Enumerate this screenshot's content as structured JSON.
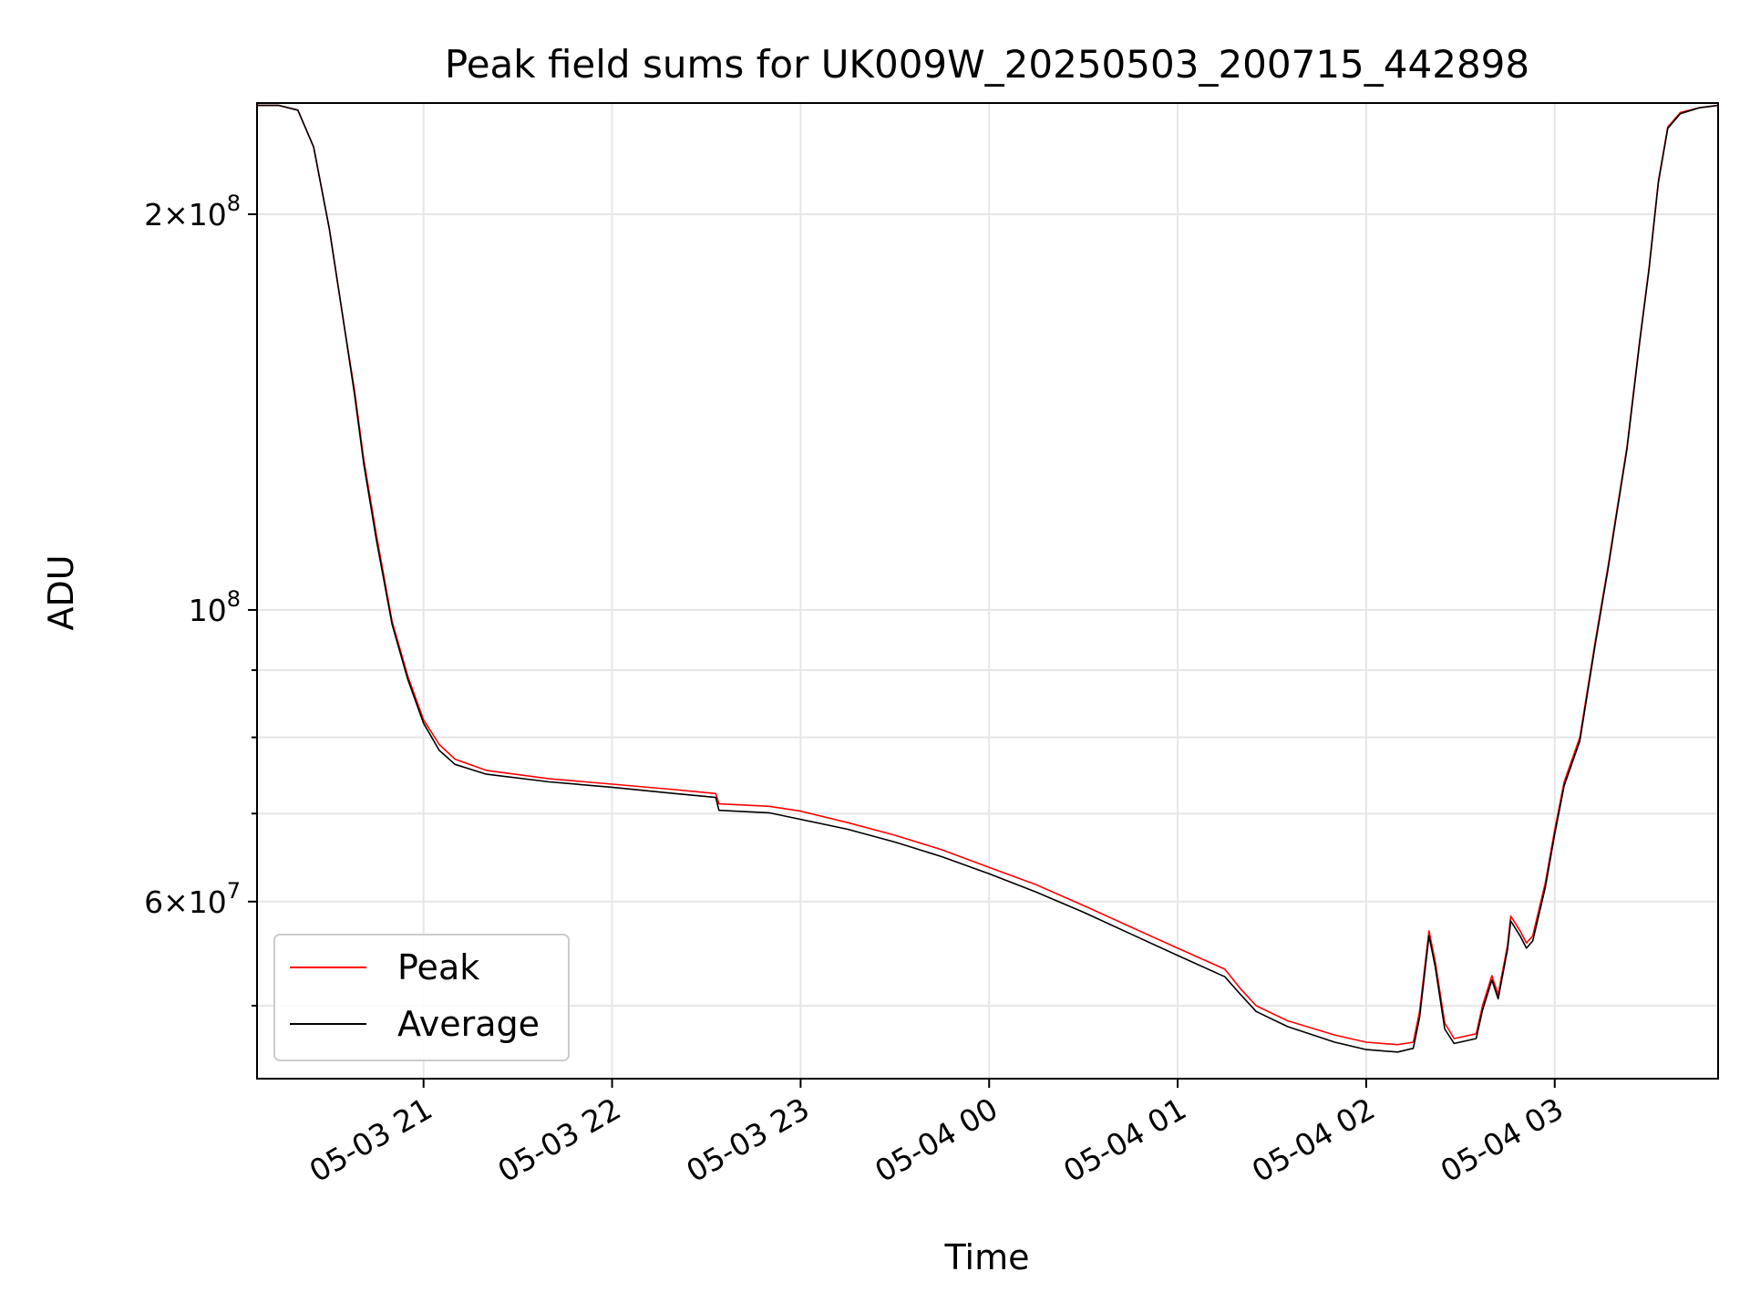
{
  "chart_data": {
    "type": "line",
    "title": "Peak field sums for UK009W_20250503_200715_442898",
    "xlabel": "Time",
    "ylabel": "ADU",
    "yscale": "log",
    "xlim": [
      "2025-05-03 20:07",
      "2025-05-04 03:52"
    ],
    "ylim": [
      44000000,
      243000000
    ],
    "grid": true,
    "legend_position": "lower-left",
    "x_ticks": [
      {
        "t": "2025-05-03 21:00",
        "label": "05-03 21"
      },
      {
        "t": "2025-05-03 22:00",
        "label": "05-03 22"
      },
      {
        "t": "2025-05-03 23:00",
        "label": "05-03 23"
      },
      {
        "t": "2025-05-04 00:00",
        "label": "05-04 00"
      },
      {
        "t": "2025-05-04 01:00",
        "label": "05-04 01"
      },
      {
        "t": "2025-05-04 02:00",
        "label": "05-04 02"
      },
      {
        "t": "2025-05-04 03:00",
        "label": "05-04 03"
      }
    ],
    "y_major_ticks": [
      {
        "value": 200000000,
        "mant": "2×10",
        "exp": "8"
      },
      {
        "value": 100000000,
        "mant": "10",
        "exp": "8"
      },
      {
        "value": 60000000,
        "mant": "6×10",
        "exp": "7"
      }
    ],
    "y_minor_ticks": [
      50000000,
      70000000,
      80000000,
      90000000
    ],
    "series": [
      {
        "name": "Peak",
        "color": "#ff0000",
        "points": [
          [
            "2025-05-03 20:07",
            242000000
          ],
          [
            "2025-05-03 20:14",
            242000000
          ],
          [
            "2025-05-03 20:20",
            240000000
          ],
          [
            "2025-05-03 20:25",
            225000000
          ],
          [
            "2025-05-03 20:30",
            195000000
          ],
          [
            "2025-05-03 20:35",
            163000000
          ],
          [
            "2025-05-03 20:38",
            147000000
          ],
          [
            "2025-05-03 20:41",
            130000000
          ],
          [
            "2025-05-03 20:45",
            114000000
          ],
          [
            "2025-05-03 20:50",
            98000000
          ],
          [
            "2025-05-03 20:55",
            89000000
          ],
          [
            "2025-05-03 21:00",
            82500000
          ],
          [
            "2025-05-03 21:05",
            79000000
          ],
          [
            "2025-05-03 21:10",
            77000000
          ],
          [
            "2025-05-03 21:20",
            75500000
          ],
          [
            "2025-05-03 21:40",
            74400000
          ],
          [
            "2025-05-03 22:00",
            73700000
          ],
          [
            "2025-05-03 22:20",
            73000000
          ],
          [
            "2025-05-03 22:33",
            72500000
          ],
          [
            "2025-05-03 22:34",
            71200000
          ],
          [
            "2025-05-03 22:50",
            70900000
          ],
          [
            "2025-05-03 23:00",
            70300000
          ],
          [
            "2025-05-03 23:15",
            68900000
          ],
          [
            "2025-05-03 23:30",
            67400000
          ],
          [
            "2025-05-03 23:45",
            65700000
          ],
          [
            "2025-05-04 00:00",
            63700000
          ],
          [
            "2025-05-04 00:15",
            61800000
          ],
          [
            "2025-05-04 00:30",
            59600000
          ],
          [
            "2025-05-04 00:45",
            57400000
          ],
          [
            "2025-05-04 01:00",
            55300000
          ],
          [
            "2025-05-04 01:15",
            53300000
          ],
          [
            "2025-05-04 01:20",
            51500000
          ],
          [
            "2025-05-04 01:25",
            50000000
          ],
          [
            "2025-05-04 01:35",
            48700000
          ],
          [
            "2025-05-04 01:50",
            47500000
          ],
          [
            "2025-05-04 02:00",
            46900000
          ],
          [
            "2025-05-04 02:10",
            46700000
          ],
          [
            "2025-05-04 02:15",
            46900000
          ],
          [
            "2025-05-04 02:17",
            49500000
          ],
          [
            "2025-05-04 02:20",
            57000000
          ],
          [
            "2025-05-04 02:22",
            54000000
          ],
          [
            "2025-05-04 02:25",
            48500000
          ],
          [
            "2025-05-04 02:28",
            47200000
          ],
          [
            "2025-05-04 02:35",
            47600000
          ],
          [
            "2025-05-04 02:37",
            50000000
          ],
          [
            "2025-05-04 02:40",
            52700000
          ],
          [
            "2025-05-04 02:42",
            51000000
          ],
          [
            "2025-05-04 02:45",
            55600000
          ],
          [
            "2025-05-04 02:46",
            58500000
          ],
          [
            "2025-05-04 02:49",
            57000000
          ],
          [
            "2025-05-04 02:51",
            55800000
          ],
          [
            "2025-05-04 02:53",
            56500000
          ],
          [
            "2025-05-04 02:57",
            62000000
          ],
          [
            "2025-05-04 03:00",
            68000000
          ],
          [
            "2025-05-04 03:03",
            74000000
          ],
          [
            "2025-05-04 03:08",
            80000000
          ],
          [
            "2025-05-04 03:13",
            95000000
          ],
          [
            "2025-05-04 03:17",
            108000000
          ],
          [
            "2025-05-04 03:20",
            120000000
          ],
          [
            "2025-05-04 03:23",
            133000000
          ],
          [
            "2025-05-04 03:27",
            160000000
          ],
          [
            "2025-05-04 03:30",
            182000000
          ],
          [
            "2025-05-04 03:33",
            212000000
          ],
          [
            "2025-05-04 03:36",
            233000000
          ],
          [
            "2025-05-04 03:40",
            239000000
          ],
          [
            "2025-05-04 03:46",
            241000000
          ],
          [
            "2025-05-04 03:52",
            242000000
          ]
        ]
      },
      {
        "name": "Average",
        "color": "#000000",
        "points": [
          [
            "2025-05-03 20:07",
            242000000
          ],
          [
            "2025-05-03 20:14",
            242000000
          ],
          [
            "2025-05-03 20:20",
            240000000
          ],
          [
            "2025-05-03 20:25",
            225000000
          ],
          [
            "2025-05-03 20:30",
            195000000
          ],
          [
            "2025-05-03 20:35",
            163000000
          ],
          [
            "2025-05-03 20:38",
            146000000
          ],
          [
            "2025-05-03 20:41",
            129000000
          ],
          [
            "2025-05-03 20:45",
            113000000
          ],
          [
            "2025-05-03 20:50",
            97500000
          ],
          [
            "2025-05-03 20:55",
            88500000
          ],
          [
            "2025-05-03 21:00",
            82000000
          ],
          [
            "2025-05-03 21:05",
            78200000
          ],
          [
            "2025-05-03 21:10",
            76300000
          ],
          [
            "2025-05-03 21:20",
            75000000
          ],
          [
            "2025-05-03 21:40",
            74000000
          ],
          [
            "2025-05-03 22:00",
            73300000
          ],
          [
            "2025-05-03 22:20",
            72500000
          ],
          [
            "2025-05-03 22:33",
            72000000
          ],
          [
            "2025-05-03 22:34",
            70400000
          ],
          [
            "2025-05-03 22:50",
            70100000
          ],
          [
            "2025-05-03 23:00",
            69300000
          ],
          [
            "2025-05-03 23:15",
            68100000
          ],
          [
            "2025-05-03 23:30",
            66600000
          ],
          [
            "2025-05-03 23:45",
            64900000
          ],
          [
            "2025-05-04 00:00",
            63000000
          ],
          [
            "2025-05-04 00:15",
            61000000
          ],
          [
            "2025-05-04 00:30",
            58900000
          ],
          [
            "2025-05-04 00:45",
            56700000
          ],
          [
            "2025-05-04 01:00",
            54600000
          ],
          [
            "2025-05-04 01:15",
            52600000
          ],
          [
            "2025-05-04 01:20",
            51000000
          ],
          [
            "2025-05-04 01:25",
            49500000
          ],
          [
            "2025-05-04 01:35",
            48200000
          ],
          [
            "2025-05-04 01:50",
            46900000
          ],
          [
            "2025-05-04 02:00",
            46300000
          ],
          [
            "2025-05-04 02:10",
            46100000
          ],
          [
            "2025-05-04 02:15",
            46400000
          ],
          [
            "2025-05-04 02:17",
            49000000
          ],
          [
            "2025-05-04 02:20",
            56500000
          ],
          [
            "2025-05-04 02:22",
            53500000
          ],
          [
            "2025-05-04 02:25",
            48000000
          ],
          [
            "2025-05-04 02:28",
            46800000
          ],
          [
            "2025-05-04 02:35",
            47200000
          ],
          [
            "2025-05-04 02:37",
            49600000
          ],
          [
            "2025-05-04 02:40",
            52300000
          ],
          [
            "2025-05-04 02:42",
            50600000
          ],
          [
            "2025-05-04 02:45",
            55200000
          ],
          [
            "2025-05-04 02:46",
            58000000
          ],
          [
            "2025-05-04 02:49",
            56500000
          ],
          [
            "2025-05-04 02:51",
            55300000
          ],
          [
            "2025-05-04 02:53",
            56000000
          ],
          [
            "2025-05-04 02:57",
            61500000
          ],
          [
            "2025-05-04 03:00",
            67500000
          ],
          [
            "2025-05-04 03:03",
            73500000
          ],
          [
            "2025-05-04 03:08",
            79500000
          ],
          [
            "2025-05-04 03:13",
            94500000
          ],
          [
            "2025-05-04 03:17",
            107500000
          ],
          [
            "2025-05-04 03:20",
            119500000
          ],
          [
            "2025-05-04 03:23",
            132500000
          ],
          [
            "2025-05-04 03:27",
            159500000
          ],
          [
            "2025-05-04 03:30",
            181500000
          ],
          [
            "2025-05-04 03:33",
            211500000
          ],
          [
            "2025-05-04 03:36",
            232500000
          ],
          [
            "2025-05-04 03:40",
            238500000
          ],
          [
            "2025-05-04 03:46",
            241000000
          ],
          [
            "2025-05-04 03:52",
            242000000
          ]
        ]
      }
    ]
  }
}
